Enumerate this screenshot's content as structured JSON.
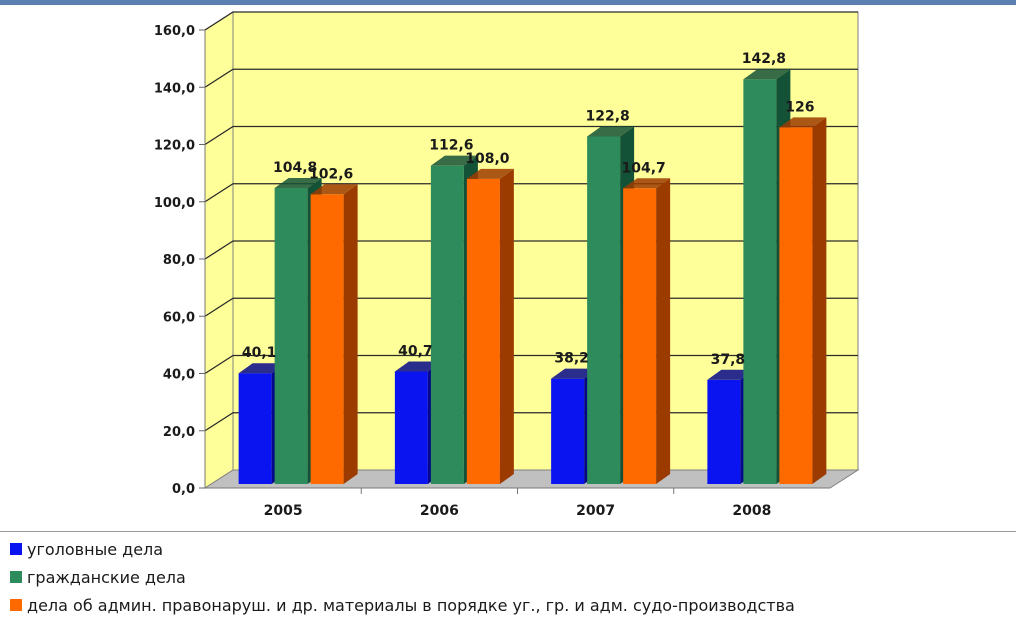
{
  "chart_data": {
    "type": "bar",
    "categories": [
      "2005",
      "2006",
      "2007",
      "2008"
    ],
    "series": [
      {
        "name": "уголовные дела",
        "values": [
          40.1,
          40.7,
          38.2,
          37.8
        ],
        "labels": [
          "40,1",
          "40,7",
          "38,2",
          "37,8"
        ],
        "color": "#0a14f0",
        "side_color": "#05088a"
      },
      {
        "name": "гражданские дела",
        "values": [
          104.8,
          112.6,
          122.8,
          142.8
        ],
        "labels": [
          "104,8",
          "112,6",
          "122,8",
          "142,8"
        ],
        "color": "#2e8b5c",
        "side_color": "#145237"
      },
      {
        "name": "дела об админ. правонаруш. и др. материалы в порядке уг., гр. и адм. судо-производства",
        "values": [
          102.6,
          108.0,
          104.7,
          126
        ],
        "labels": [
          "102,6",
          "108,0",
          "104,7",
          "126"
        ],
        "color": "#ff6a00",
        "side_color": "#9c3b00"
      }
    ],
    "ylim": [
      0,
      160
    ],
    "yticks": [
      0,
      20,
      40,
      60,
      80,
      100,
      120,
      140,
      160
    ],
    "ytick_labels": [
      "0,0",
      "20,0",
      "40,0",
      "60,0",
      "80,0",
      "100,0",
      "120,0",
      "140,0",
      "160,0"
    ],
    "grid": true,
    "legend_placement": "bottom",
    "plot_background": "#ffff99",
    "floor_color": "#c0c0c0",
    "title": "",
    "xlabel": "",
    "ylabel": ""
  },
  "legend": [
    {
      "label": "уголовные дела",
      "color": "#0a14f0"
    },
    {
      "label": "гражданские дела",
      "color": "#2e8b5c"
    },
    {
      "label": "дела об админ. правонаруш. и др. материалы в порядке уг., гр. и адм. судо-производства",
      "color": "#ff6a00"
    }
  ]
}
